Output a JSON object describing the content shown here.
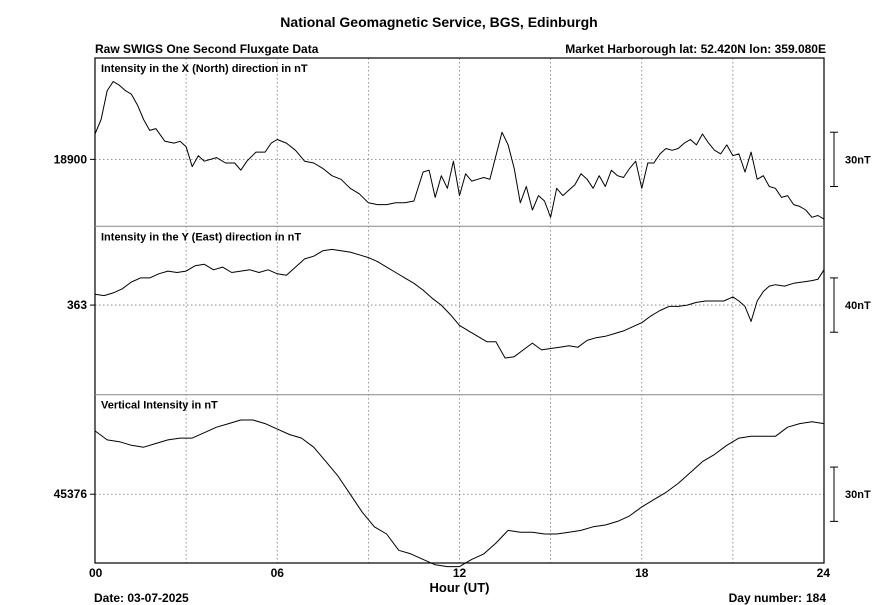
{
  "header": {
    "title": "National Geomagnetic Service, BGS, Edinburgh",
    "subtitle_left": "Raw SWIGS One Second Fluxgate Data",
    "subtitle_right": "Market Harborough  lat: 52.420N lon: 359.080E"
  },
  "footer": {
    "date": "Date: 03-07-2025",
    "day_label": "Day number:",
    "day_number": "184"
  },
  "chart_data": {
    "type": "line",
    "xlabel": "Hour (UT)",
    "xlim": [
      0,
      24
    ],
    "x_ticks": [
      "00",
      "06",
      "12",
      "18",
      "24"
    ],
    "grid": true,
    "panels": [
      {
        "label": "Intensity in the X (North) direction in nT",
        "ref_label": "18900",
        "ref_value": 18900,
        "scale_label": "30nT",
        "scale_nT": 30,
        "range": [
          18863,
          18956
        ],
        "series": {
          "x": [
            0,
            0.2,
            0.4,
            0.6,
            0.8,
            1.0,
            1.2,
            1.4,
            1.6,
            1.8,
            2.0,
            2.3,
            2.6,
            2.8,
            3.0,
            3.2,
            3.4,
            3.6,
            3.8,
            4.0,
            4.3,
            4.6,
            4.8,
            5.0,
            5.3,
            5.6,
            5.8,
            6.0,
            6.3,
            6.6,
            6.9,
            7.2,
            7.5,
            7.8,
            8.1,
            8.4,
            8.7,
            9.0,
            9.3,
            9.6,
            9.9,
            10.2,
            10.5,
            10.8,
            11.0,
            11.2,
            11.4,
            11.6,
            11.8,
            12.0,
            12.2,
            12.4,
            12.6,
            12.8,
            13.0,
            13.2,
            13.4,
            13.6,
            13.8,
            14.0,
            14.2,
            14.4,
            14.6,
            14.8,
            15.0,
            15.2,
            15.4,
            15.6,
            15.8,
            16.0,
            16.2,
            16.4,
            16.6,
            16.8,
            17.0,
            17.2,
            17.4,
            17.6,
            17.8,
            18.0,
            18.2,
            18.4,
            18.6,
            18.8,
            19.0,
            19.2,
            19.4,
            19.6,
            19.8,
            20.0,
            20.2,
            20.4,
            20.6,
            20.8,
            21.0,
            21.2,
            21.4,
            21.6,
            21.8,
            22.0,
            22.2,
            22.4,
            22.6,
            22.8,
            23.0,
            23.2,
            23.4,
            23.6,
            23.8,
            24.0
          ],
          "y": [
            18914,
            18922,
            18938,
            18943,
            18941,
            18938,
            18936,
            18930,
            18922,
            18916,
            18917,
            18910,
            18909,
            18910,
            18907,
            18896,
            18902,
            18899,
            18900,
            18901,
            18898,
            18898,
            18894,
            18899,
            18904,
            18904,
            18909,
            18911,
            18909,
            18905,
            18899,
            18898,
            18895,
            18891,
            18889,
            18884,
            18881,
            18876,
            18875,
            18875,
            18876,
            18876,
            18877,
            18893,
            18894,
            18879,
            18891,
            18884,
            18899,
            18880,
            18892,
            18888,
            18889,
            18890,
            18889,
            18902,
            18915,
            18908,
            18895,
            18876,
            18885,
            18872,
            18880,
            18877,
            18868,
            18884,
            18880,
            18883,
            18886,
            18892,
            18889,
            18884,
            18891,
            18885,
            18894,
            18891,
            18890,
            18895,
            18899,
            18884,
            18898,
            18898,
            18903,
            18906,
            18905,
            18906,
            18909,
            18911,
            18908,
            18914,
            18909,
            18905,
            18903,
            18908,
            18902,
            18903,
            18893,
            18904,
            18889,
            18891,
            18885,
            18884,
            18879,
            18880,
            18875,
            18874,
            18872,
            18868,
            18869,
            18867
          ]
        }
      },
      {
        "label": "Intensity in the Y (East) direction in nT",
        "ref_label": "363",
        "ref_value": 363,
        "scale_label": "40nT",
        "scale_nT": 40,
        "range": [
          297,
          421
        ],
        "series": {
          "x": [
            0,
            0.3,
            0.6,
            0.9,
            1.2,
            1.5,
            1.8,
            2.1,
            2.4,
            2.7,
            3.0,
            3.3,
            3.6,
            3.9,
            4.2,
            4.5,
            4.8,
            5.1,
            5.4,
            5.7,
            6.0,
            6.3,
            6.6,
            6.9,
            7.2,
            7.5,
            7.8,
            8.1,
            8.4,
            8.7,
            9.0,
            9.3,
            9.6,
            9.9,
            10.2,
            10.5,
            10.8,
            11.1,
            11.4,
            11.7,
            12.0,
            12.3,
            12.6,
            12.9,
            13.2,
            13.5,
            13.8,
            14.1,
            14.4,
            14.7,
            15.0,
            15.3,
            15.6,
            15.9,
            16.2,
            16.5,
            16.8,
            17.1,
            17.4,
            17.7,
            18.0,
            18.3,
            18.6,
            18.9,
            19.2,
            19.5,
            19.8,
            20.1,
            20.4,
            20.7,
            21.0,
            21.2,
            21.4,
            21.6,
            21.8,
            22.0,
            22.2,
            22.4,
            22.7,
            23.0,
            23.3,
            23.6,
            23.8,
            24.0
          ],
          "y": [
            371,
            370,
            372,
            375,
            380,
            383,
            383,
            386,
            388,
            387,
            388,
            392,
            393,
            389,
            391,
            387,
            388,
            389,
            387,
            389,
            386,
            385,
            391,
            397,
            399,
            403,
            404,
            403,
            402,
            400,
            398,
            395,
            391,
            387,
            383,
            379,
            374,
            368,
            363,
            356,
            348,
            344,
            340,
            336,
            336,
            324,
            325,
            330,
            335,
            330,
            331,
            332,
            333,
            332,
            337,
            339,
            340,
            342,
            344,
            347,
            350,
            355,
            359,
            362,
            362,
            363,
            365,
            366,
            366,
            366,
            369,
            366,
            362,
            351,
            366,
            373,
            377,
            378,
            377,
            379,
            380,
            381,
            382,
            389
          ]
        }
      },
      {
        "label": "Vertical Intensity in nT",
        "ref_label": "45376",
        "ref_value": 45376,
        "scale_label": "30nT",
        "scale_nT": 30,
        "range": [
          45338,
          45431
        ],
        "series": {
          "x": [
            0,
            0.4,
            0.8,
            1.2,
            1.6,
            2.0,
            2.4,
            2.8,
            3.2,
            3.6,
            4.0,
            4.4,
            4.8,
            5.2,
            5.6,
            6.0,
            6.4,
            6.8,
            7.2,
            7.6,
            8.0,
            8.4,
            8.8,
            9.2,
            9.6,
            10.0,
            10.4,
            10.8,
            11.2,
            11.6,
            12.0,
            12.4,
            12.8,
            13.2,
            13.6,
            14.0,
            14.4,
            14.8,
            15.2,
            15.6,
            16.0,
            16.4,
            16.8,
            17.2,
            17.6,
            18.0,
            18.4,
            18.8,
            19.2,
            19.6,
            20.0,
            20.4,
            20.8,
            21.2,
            21.6,
            22.0,
            22.4,
            22.8,
            23.2,
            23.6,
            24.0
          ],
          "y": [
            45411,
            45406,
            45405,
            45403,
            45402,
            45404,
            45406,
            45407,
            45407,
            45410,
            45413,
            45415,
            45417,
            45417,
            45415,
            45412,
            45409,
            45407,
            45402,
            45394,
            45386,
            45376,
            45366,
            45358,
            45354,
            45345,
            45343,
            45340,
            45337,
            45336,
            45336,
            45340,
            45343,
            45349,
            45356,
            45355,
            45355,
            45354,
            45354,
            45355,
            45356,
            45358,
            45359,
            45361,
            45364,
            45369,
            45373,
            45377,
            45382,
            45388,
            45394,
            45398,
            45403,
            45407,
            45408,
            45408,
            45408,
            45413,
            45415,
            45416,
            45415
          ]
        }
      }
    ]
  }
}
